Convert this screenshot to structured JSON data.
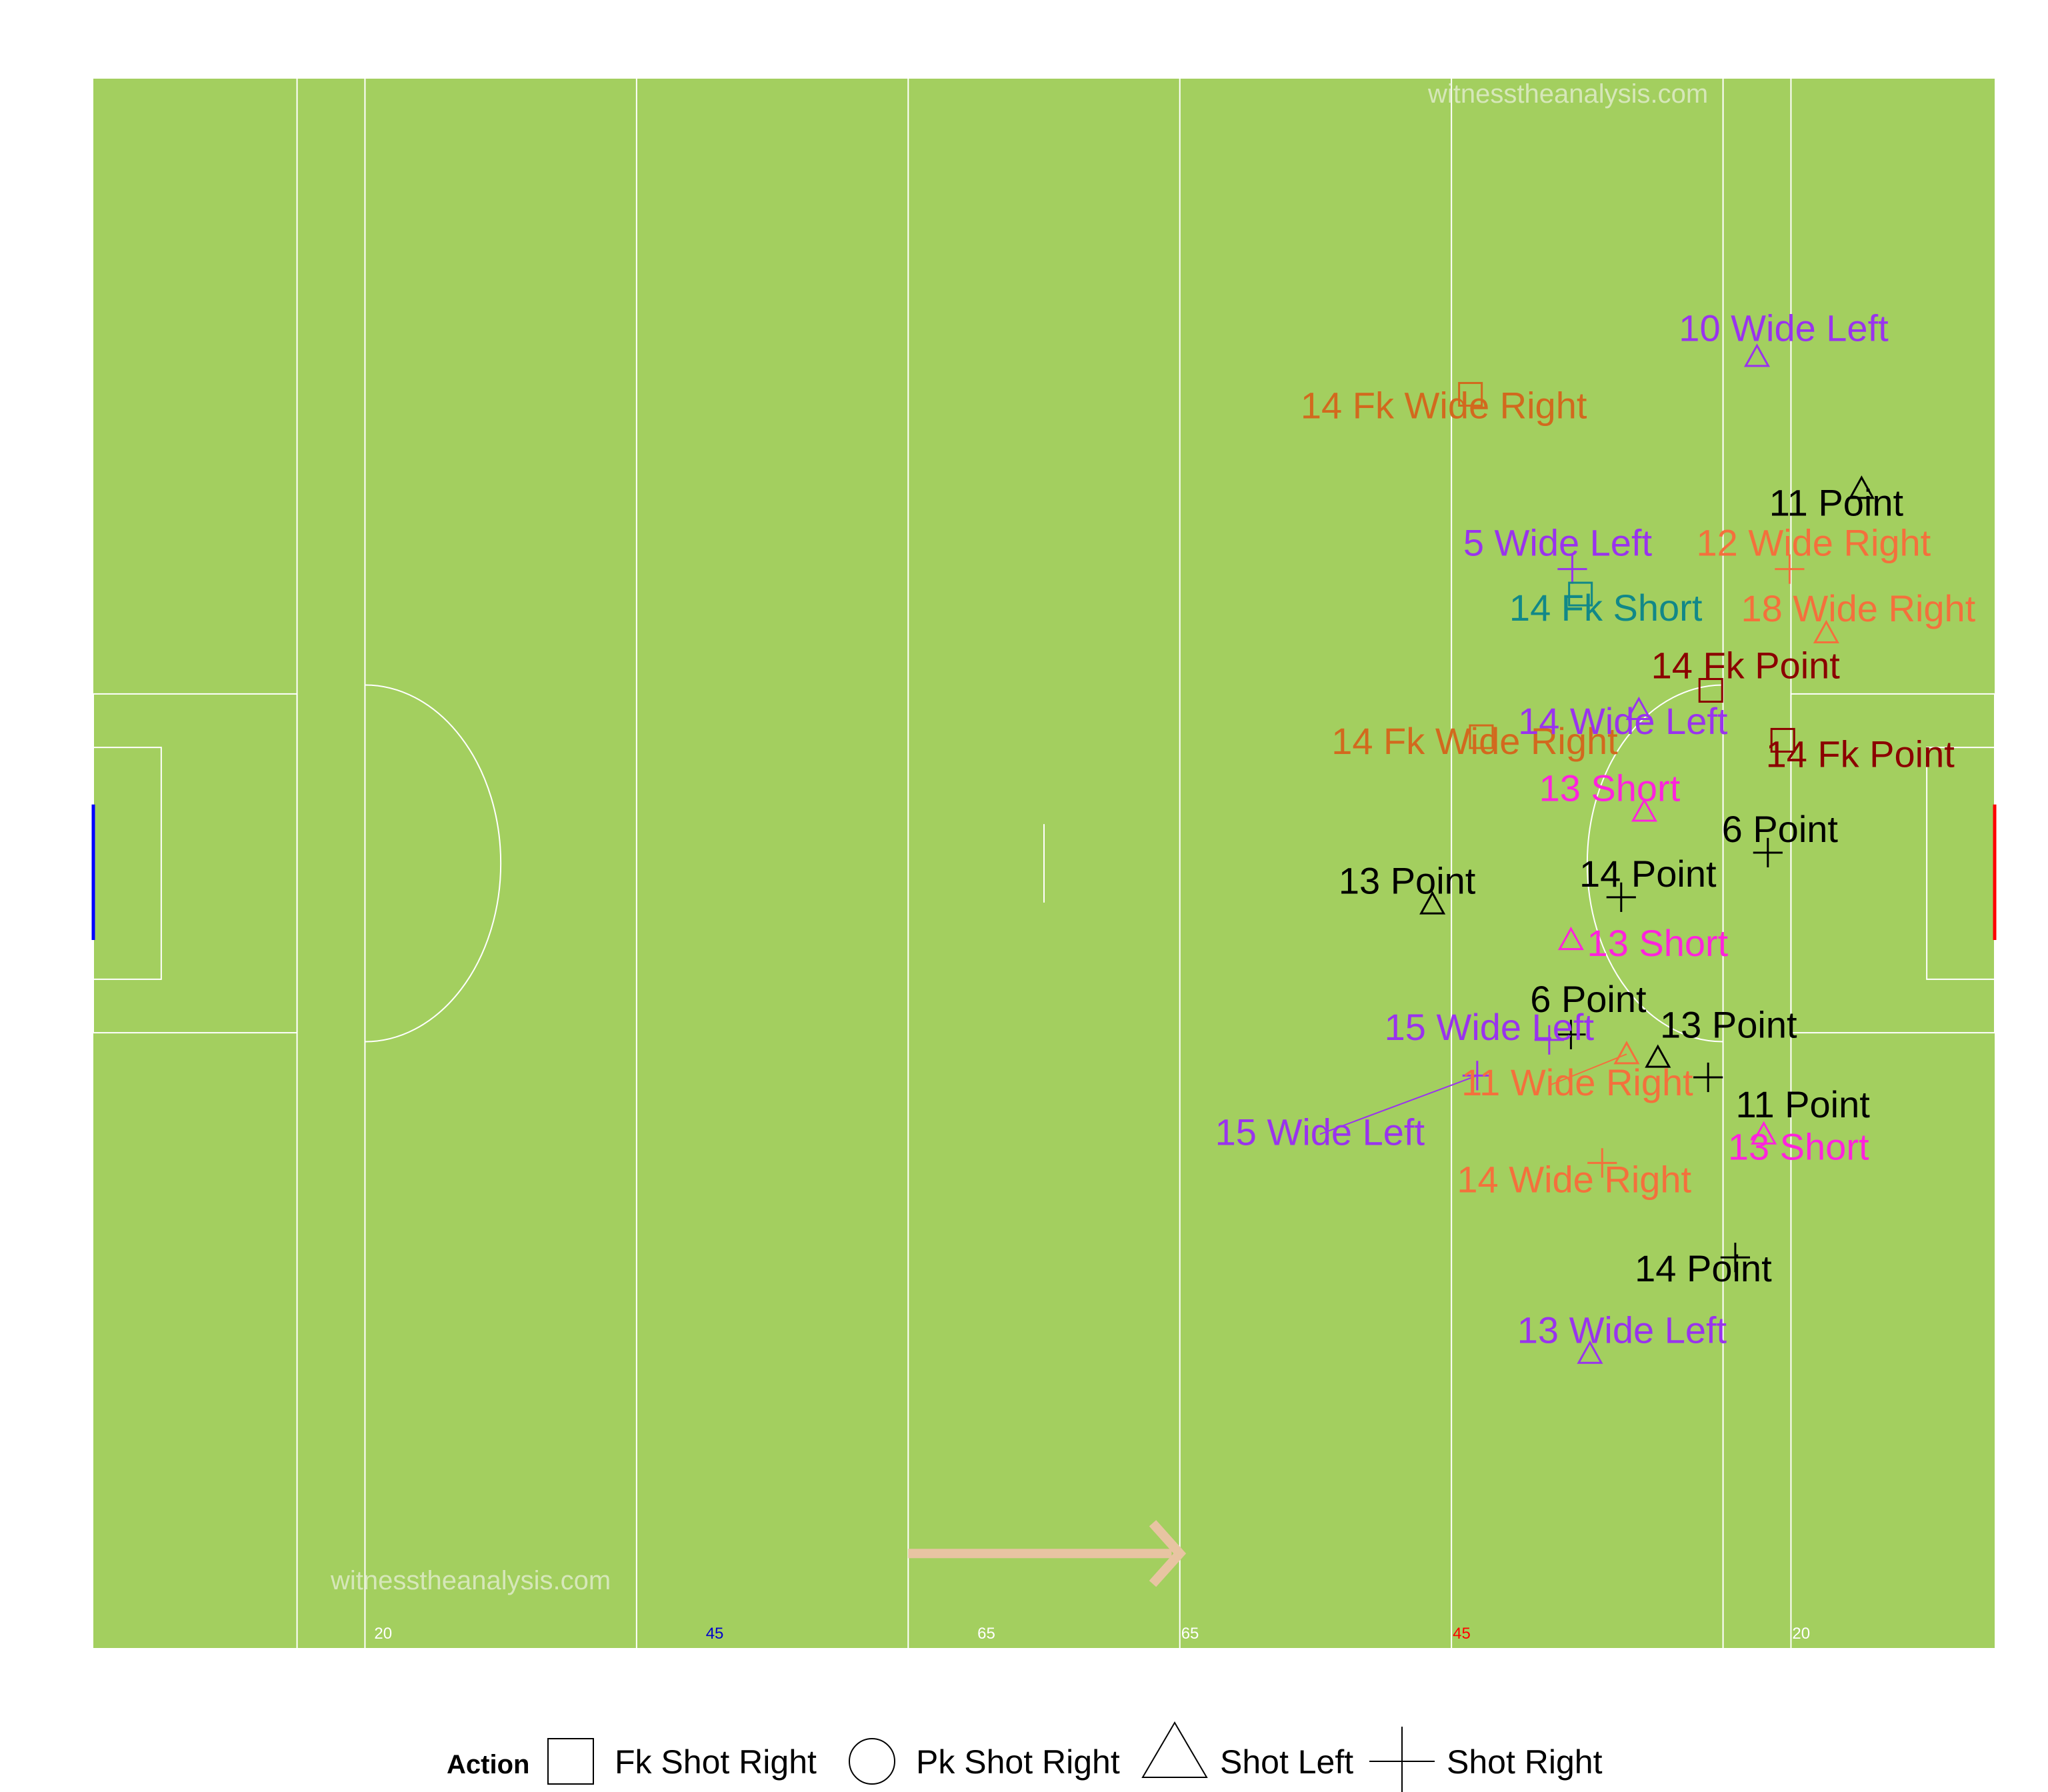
{
  "watermark": "witnesstheanalysis.com",
  "legend": {
    "title": "Action",
    "items": [
      {
        "shape": "square",
        "label": "Fk Shot Right"
      },
      {
        "shape": "circle",
        "label": "Pk Shot Right"
      },
      {
        "shape": "triangle",
        "label": "Shot Left"
      },
      {
        "shape": "plus",
        "label": "Shot Right"
      }
    ]
  },
  "pitch_markings": [
    {
      "x": 20,
      "label": "20",
      "color": "#ffffff"
    },
    {
      "x": 45,
      "label": "45",
      "color": "#0000cc"
    },
    {
      "x": 65,
      "label": "65",
      "color": "#ffffff"
    },
    {
      "x": 80,
      "label": "65",
      "color": "#ffffff"
    },
    {
      "x": 100,
      "label": "45",
      "color": "#ff0000"
    },
    {
      "x": 125,
      "label": "20",
      "color": "#ffffff"
    }
  ],
  "colors": {
    "pitch": "#a3cf5f",
    "lines": "#ffffff",
    "left_goal": "#0000ff",
    "right_goal": "#ff0000",
    "arrow": "#e8c4a2"
  },
  "chart_data": {
    "type": "scatter",
    "xlim": [
      0,
      140
    ],
    "ylim": [
      0,
      88
    ],
    "attack_direction": "right",
    "series": [
      {
        "name": "Shot Left",
        "shape": "triangle"
      },
      {
        "name": "Shot Right",
        "shape": "plus"
      },
      {
        "name": "Fk Shot Right",
        "shape": "square"
      },
      {
        "name": "Pk Shot Right",
        "shape": "circle"
      }
    ],
    "points": [
      {
        "x": 122.5,
        "y": 72.4,
        "shape": "triangle",
        "label": "10 Wide Left",
        "color": "#9933ee"
      },
      {
        "x": 101.4,
        "y": 70.3,
        "shape": "square",
        "label": "14 Fk Wide Right",
        "color": "#d2691e"
      },
      {
        "x": 130.2,
        "y": 65.0,
        "shape": "triangle",
        "label": "11 Point",
        "color": "#000000"
      },
      {
        "x": 108.9,
        "y": 60.5,
        "shape": "plus",
        "label": "5 Wide Left",
        "color": "#9933ee"
      },
      {
        "x": 124.9,
        "y": 60.5,
        "shape": "plus",
        "label": "12 Wide Right",
        "color": "#f4703c"
      },
      {
        "x": 109.5,
        "y": 59.1,
        "shape": "square",
        "label": "14 Fk Short",
        "color": "#118888"
      },
      {
        "x": 127.6,
        "y": 56.9,
        "shape": "triangle",
        "label": "18 Wide Right",
        "color": "#f4703c"
      },
      {
        "x": 119.1,
        "y": 53.7,
        "shape": "square",
        "label": "14 Fk Point",
        "color": "#8b0000"
      },
      {
        "x": 102.2,
        "y": 51.1,
        "shape": "square",
        "label": "14 Fk Wide Right",
        "color": "#d2691e"
      },
      {
        "x": 113.8,
        "y": 52.6,
        "shape": "triangle",
        "label": "14 Wide Left",
        "color": "#9933ee"
      },
      {
        "x": 124.4,
        "y": 50.9,
        "shape": "square",
        "label": "14 Fk Point",
        "color": "#8b0000"
      },
      {
        "x": 114.2,
        "y": 46.9,
        "shape": "triangle",
        "label": "13 Short",
        "color": "#ff22dd"
      },
      {
        "x": 123.3,
        "y": 44.6,
        "shape": "plus",
        "label": "6 Point",
        "color": "#000000"
      },
      {
        "x": 98.6,
        "y": 41.7,
        "shape": "triangle",
        "label": "13 Point",
        "color": "#000000"
      },
      {
        "x": 112.5,
        "y": 42.1,
        "shape": "plus",
        "label": "14 Point",
        "color": "#000000"
      },
      {
        "x": 108.8,
        "y": 39.7,
        "shape": "triangle",
        "label": "13 Short",
        "color": "#ff22dd"
      },
      {
        "x": 108.8,
        "y": 34.4,
        "shape": "plus",
        "label": "6 Point",
        "color": "#000000"
      },
      {
        "x": 107.2,
        "y": 34.1,
        "shape": "plus",
        "label": "15 Wide Left",
        "color": "#9933ee"
      },
      {
        "x": 112.9,
        "y": 33.3,
        "shape": "triangle",
        "label": "11 Wide Right",
        "color": "#f4703c"
      },
      {
        "x": 115.2,
        "y": 33.1,
        "shape": "triangle",
        "label": "13 Point",
        "color": "#000000"
      },
      {
        "x": 101.9,
        "y": 32.1,
        "shape": "plus",
        "label": "15 Wide Left",
        "color": "#9933ee"
      },
      {
        "x": 118.9,
        "y": 32.0,
        "shape": "plus",
        "label": "11 Point",
        "color": "#000000"
      },
      {
        "x": 123.0,
        "y": 28.8,
        "shape": "triangle",
        "label": "13 Short",
        "color": "#ff22dd"
      },
      {
        "x": 111.1,
        "y": 27.2,
        "shape": "plus",
        "label": "14 Wide Right",
        "color": "#f4703c"
      },
      {
        "x": 120.9,
        "y": 21.9,
        "shape": "plus",
        "label": "14 Point",
        "color": "#000000"
      },
      {
        "x": 110.2,
        "y": 16.5,
        "shape": "triangle",
        "label": "13 Wide Left",
        "color": "#9933ee"
      }
    ]
  }
}
